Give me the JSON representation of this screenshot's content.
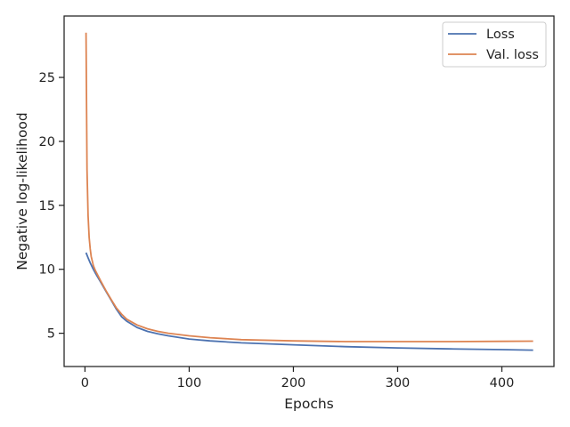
{
  "chart_data": {
    "type": "line",
    "title": "",
    "xlabel": "Epochs",
    "ylabel": "Negative log-likelihood",
    "xlim": [
      -20,
      450
    ],
    "ylim": [
      2.4,
      29.8
    ],
    "xticks": [
      0,
      100,
      200,
      300,
      400
    ],
    "yticks": [
      5,
      10,
      15,
      20,
      25
    ],
    "grid": false,
    "legend_position": "top-right",
    "series": [
      {
        "name": "Loss",
        "color": "#4c72b0",
        "x": [
          1,
          3,
          5,
          8,
          10,
          15,
          20,
          25,
          30,
          35,
          40,
          50,
          60,
          70,
          80,
          100,
          120,
          150,
          200,
          250,
          300,
          350,
          400,
          430
        ],
        "y": [
          11.3,
          10.9,
          10.5,
          10.0,
          9.7,
          9.0,
          8.3,
          7.6,
          6.9,
          6.3,
          5.95,
          5.45,
          5.15,
          4.95,
          4.8,
          4.55,
          4.4,
          4.25,
          4.1,
          3.95,
          3.85,
          3.78,
          3.72,
          3.68
        ]
      },
      {
        "name": "Val. loss",
        "color": "#dd8452",
        "x": [
          1,
          2,
          3,
          4,
          5,
          6,
          8,
          10,
          15,
          20,
          25,
          30,
          35,
          40,
          50,
          60,
          70,
          80,
          100,
          120,
          150,
          200,
          250,
          300,
          350,
          400,
          430
        ],
        "y": [
          28.5,
          17.8,
          14.2,
          12.5,
          11.6,
          11.0,
          10.3,
          9.9,
          9.1,
          8.35,
          7.65,
          7.0,
          6.5,
          6.1,
          5.65,
          5.35,
          5.15,
          5.0,
          4.8,
          4.65,
          4.5,
          4.4,
          4.35,
          4.35,
          4.35,
          4.37,
          4.38
        ]
      }
    ]
  }
}
